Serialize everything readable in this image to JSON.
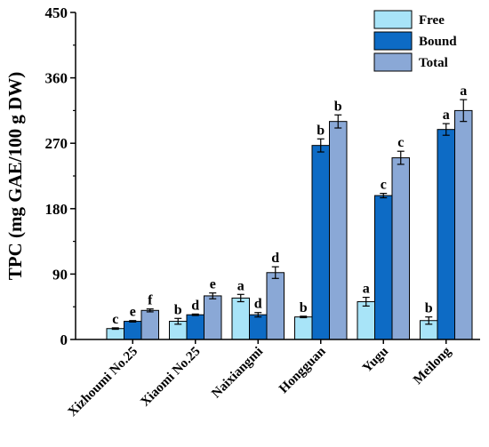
{
  "chart_data": {
    "type": "bar",
    "ylabel": "TPC (mg GAE/100 g DW)",
    "xlabel": "",
    "ylim": [
      0,
      450
    ],
    "yticks": [
      "0",
      "90",
      "180",
      "270",
      "360",
      "450"
    ],
    "categories": [
      "Xizhoumi No.25",
      "Xiaomi No.25",
      "Naixiangmi",
      "Hongguan",
      "Yugu",
      "Meilong"
    ],
    "series": [
      {
        "name": "Free",
        "color": "#a8e4f8",
        "values": [
          15,
          25,
          57,
          31,
          52,
          26
        ],
        "errors": [
          1,
          4,
          5,
          1,
          6,
          5
        ],
        "letters": [
          "c",
          "b",
          "a",
          "b",
          "a",
          "b"
        ]
      },
      {
        "name": "Bound",
        "color": "#0d6bc5",
        "values": [
          25,
          34,
          34,
          267,
          198,
          289
        ],
        "errors": [
          1,
          1,
          3,
          9,
          3,
          8
        ],
        "letters": [
          "e",
          "d",
          "d",
          "b",
          "c",
          "a"
        ]
      },
      {
        "name": "Total",
        "color": "#8aa8d6",
        "values": [
          40,
          60,
          92,
          300,
          250,
          315
        ],
        "errors": [
          2,
          4,
          8,
          9,
          9,
          15
        ],
        "letters": [
          "f",
          "e",
          "d",
          "b",
          "c",
          "a"
        ]
      }
    ],
    "legend_position": "top-right",
    "grid": false
  }
}
